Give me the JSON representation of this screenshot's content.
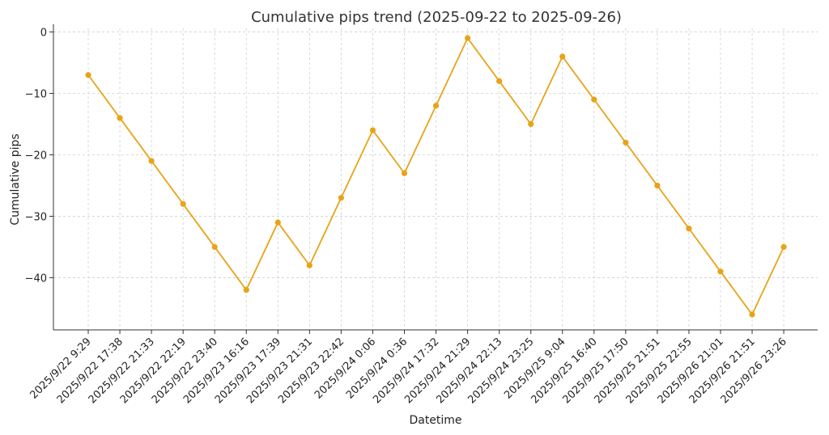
{
  "chart_data": {
    "type": "line",
    "title": "Cumulative pips trend (2025-09-22 to 2025-09-26)",
    "xlabel": "Datetime",
    "ylabel": "Cumulative pips",
    "ylim": [
      -48.5,
      0.6
    ],
    "yticks": [
      0,
      -10,
      -20,
      -30,
      -40
    ],
    "grid": true,
    "color": "#E8A317",
    "categories": [
      "2025/9/22 9:29",
      "2025/9/22 17:38",
      "2025/9/22 21:33",
      "2025/9/22 22:19",
      "2025/9/22 23:40",
      "2025/9/23 16:16",
      "2025/9/23 17:39",
      "2025/9/23 21:31",
      "2025/9/23 22:42",
      "2025/9/24 0:06",
      "2025/9/24 0:36",
      "2025/9/24 17:32",
      "2025/9/24 21:29",
      "2025/9/24 22:13",
      "2025/9/24 23:25",
      "2025/9/25 9:04",
      "2025/9/25 16:40",
      "2025/9/25 17:50",
      "2025/9/25 21:51",
      "2025/9/25 22:55",
      "2025/9/26 21:01",
      "2025/9/26 21:51",
      "2025/9/26 23:26"
    ],
    "values": [
      -7,
      -14,
      -21,
      -28,
      -35,
      -42,
      -31,
      -38,
      -27,
      -16,
      -23,
      -12,
      -1,
      -8,
      -15,
      -4,
      -11,
      -18,
      -25,
      -32,
      -39,
      -46,
      -35
    ]
  }
}
